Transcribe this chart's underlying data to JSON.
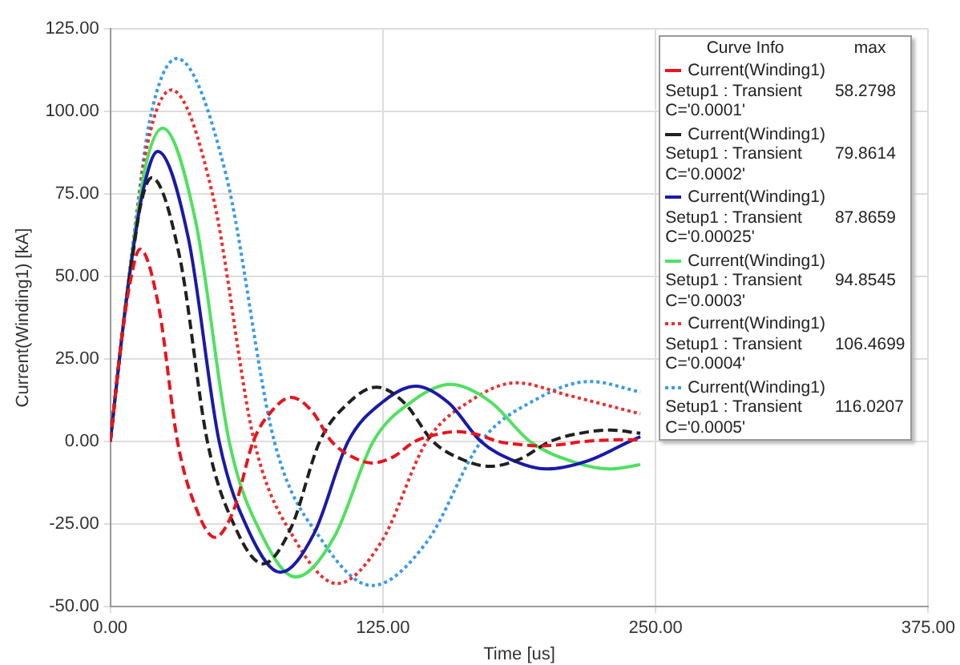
{
  "chart_data": {
    "type": "line",
    "xlabel": "Time [us]",
    "ylabel": "Current(Winding1) [kA]",
    "legend_title": "Curve Info",
    "xlim": [
      0,
      375
    ],
    "xticks": [
      {
        "value": 0,
        "label": "0.00"
      },
      {
        "value": 125,
        "label": "125.00"
      },
      {
        "value": 250,
        "label": "250.00"
      },
      {
        "value": 375,
        "label": "375.00"
      }
    ],
    "ylim": [
      -50,
      125
    ],
    "yticks": [
      {
        "value": -50,
        "label": "-50.00"
      },
      {
        "value": -25,
        "label": "-25.00"
      },
      {
        "value": 0,
        "label": "0.00"
      },
      {
        "value": 25,
        "label": "25.00"
      },
      {
        "value": 50,
        "label": "50.00"
      },
      {
        "value": 75,
        "label": "75.00"
      },
      {
        "value": 100,
        "label": "100.00"
      },
      {
        "value": 125,
        "label": "125.00"
      }
    ],
    "grid": true,
    "legend": "top right",
    "marker": "none",
    "annotations": [
      "max",
      "58.2798",
      "79.8614",
      "87.8659",
      "94.8545",
      "106.4699",
      "116.0207"
    ],
    "series": [
      {
        "name": "Current(Winding1)\nSetup1 : Transient\nC='0.0001'",
        "color": "#e8141e",
        "line_style": "dashed",
        "x": [
          0,
          5,
          9,
          13.6,
          22.2,
          30.8,
          39.4,
          48,
          56.8,
          65.5,
          74.2,
          83,
          92.2,
          101.5,
          110.8,
          120,
          129.8,
          139.5,
          149.2,
          159,
          168.5,
          178,
          187.5,
          197,
          206.8,
          216.5,
          226,
          236,
          243
        ],
        "values": [
          0,
          30,
          48,
          58.3,
          40.8,
          0,
          -20.3,
          -29,
          -20.3,
          0,
          9.4,
          13.4,
          9.4,
          0,
          -4.6,
          -6.5,
          -4.6,
          0,
          2.1,
          3,
          2.1,
          0,
          -0.9,
          -1.3,
          -0.9,
          0,
          0.4,
          0.6,
          0.5
        ]
      },
      {
        "name": "Current(Winding1)\nSetup1 : Transient\nC='0.0002'",
        "color": "#202020",
        "line_style": "dashed",
        "x": [
          0,
          5,
          10,
          14,
          19,
          31.8,
          44.5,
          57.2,
          70,
          83,
          96,
          109,
          122,
          135,
          148,
          161,
          174,
          187.8,
          201.5,
          215.2,
          229,
          243
        ],
        "values": [
          0,
          30,
          55,
          72,
          79.9,
          55.9,
          0,
          -25.9,
          -37,
          -25.9,
          0,
          11.6,
          16.5,
          11.6,
          0,
          -5.3,
          -7.5,
          -5.3,
          0,
          2.5,
          3.5,
          2.5
        ]
      },
      {
        "name": "Current(Winding1)\nSetup1 : Transient\nC='0.00025'",
        "color": "#1a1aa8",
        "line_style": "solid",
        "x": [
          0,
          5,
          10,
          15,
          21.7,
          35.8,
          49.9,
          63.9,
          78,
          93.5,
          109,
          124.5,
          140,
          155,
          170,
          185,
          200,
          219,
          238,
          243
        ],
        "values": [
          0,
          30,
          56,
          76,
          87.9,
          61.5,
          0,
          -27.7,
          -39.6,
          -27.7,
          0,
          11.8,
          16.8,
          11.8,
          0,
          -5.8,
          -8.3,
          -5.8,
          0,
          1.5
        ]
      },
      {
        "name": "Current(Winding1)\nSetup1 : Transient\nC='0.0003'",
        "color": "#50e060",
        "line_style": "solid",
        "x": [
          0,
          5,
          10,
          16,
          24,
          39.2,
          54.5,
          69.8,
          85,
          102.8,
          120.5,
          138.2,
          156,
          174.2,
          192.5,
          210.8,
          229,
          243
        ],
        "values": [
          0,
          30,
          57,
          83,
          94.9,
          66.4,
          0,
          -28.7,
          -41,
          -28.7,
          0,
          12.1,
          17.3,
          12.1,
          0,
          -5.8,
          -8.3,
          -7
        ]
      },
      {
        "name": "Current(Winding1)\nSetup1 : Transient\nC='0.0004'",
        "color": "#e83030",
        "line_style": "dotted",
        "x": [
          0,
          5,
          10,
          17,
          28,
          47,
          66,
          85,
          104,
          124.5,
          145,
          165.5,
          186,
          210,
          243
        ],
        "values": [
          0,
          30,
          57,
          90,
          106.5,
          74.5,
          0,
          -30.1,
          -43,
          -30.1,
          0,
          12.5,
          17.8,
          14,
          8.4
        ]
      },
      {
        "name": "Current(Winding1)\nSetup1 : Transient\nC='0.0005'",
        "color": "#3a9ae8",
        "line_style": "dotted",
        "x": [
          0,
          5,
          10,
          18,
          30.5,
          52.9,
          75.2,
          97.6,
          120,
          145,
          170,
          195,
          220,
          243
        ],
        "values": [
          0,
          30,
          58,
          97,
          116,
          81.2,
          0,
          -30.5,
          -43.6,
          -30.5,
          0,
          12.7,
          18.2,
          15
        ]
      }
    ]
  }
}
